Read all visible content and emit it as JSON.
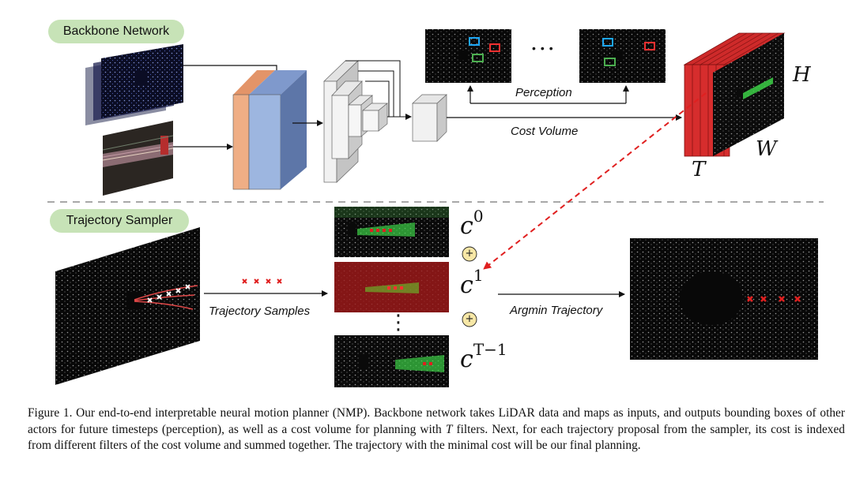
{
  "labels": {
    "backbone": "Backbone Network",
    "sampler": "Trajectory Sampler",
    "perception": "Perception",
    "cost_volume": "Cost Volume",
    "trajectory_samples": "Trajectory Samples",
    "argmin": "Argmin Trajectory",
    "dims": {
      "H": "H",
      "W": "W",
      "T": "T"
    },
    "ellipsis_h": "•••",
    "ellipsis_v": "⋮",
    "plus": "+",
    "cost_maps": [
      {
        "base": "c",
        "sup": "0"
      },
      {
        "base": "c",
        "sup": "1"
      },
      {
        "base": "c",
        "sup": "T−1"
      }
    ]
  },
  "caption": {
    "figure_label": "Figure 1.",
    "text_a": " Our end-to-end interpretable neural motion planner (NMP). Backbone network takes LiDAR data and maps as inputs, and outputs bounding boxes of other actors for future timesteps (perception), as well as a cost volume for planning with ",
    "text_math": "T",
    "text_b": " filters. Next, for each trajectory proposal from the sampler, its cost is indexed from different filters of the cost volume and summed together. The trajectory with the minimal cost will be our final planning."
  },
  "colors": {
    "pill": "#c7e3b7",
    "orange_block": "#efae85",
    "blue_block": "#9db6e0",
    "blue_block_side": "#5d76a8",
    "cost_volume": "#d62d2d",
    "arrow_red": "#e02020",
    "dashed_separator": "#a8a8a8",
    "plus_circle": "#f7e7a6",
    "box_blue": "#1ea7f5",
    "box_red": "#f23030",
    "box_green": "#4caf50",
    "trail_green": "#3cd046"
  }
}
